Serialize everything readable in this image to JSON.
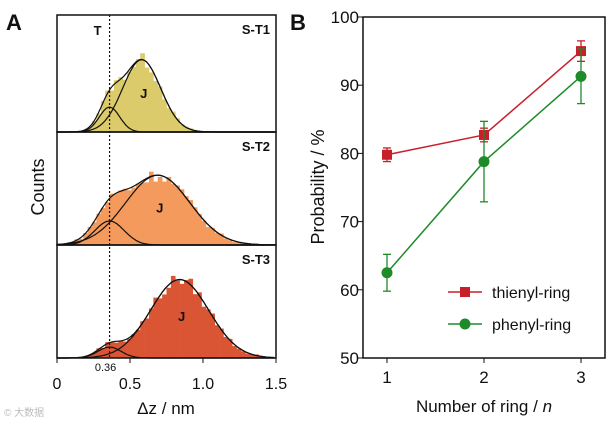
{
  "chart_data": [
    {
      "type": "histogram",
      "panel_label": "A",
      "xlabel": "Δz / nm",
      "ylabel": "Counts",
      "xlim": [
        0,
        1.5
      ],
      "xticks": [
        "0",
        "0.5",
        "1.0",
        "1.5"
      ],
      "xtick_values": [
        0,
        0.5,
        1.0,
        1.5
      ],
      "reference_line": {
        "x": 0.36,
        "label": "0.36",
        "style": "dotted"
      },
      "peak_labels": {
        "tunneling": "T",
        "junction": "J"
      },
      "series": [
        {
          "name": "S-T1",
          "color": "#dccb6a",
          "T": {
            "center": 0.36,
            "sigma": 0.07,
            "amp": 0.22
          },
          "J": {
            "center": 0.58,
            "sigma": 0.13,
            "amp": 0.64
          }
        },
        {
          "name": "S-T2",
          "color": "#f39a5c",
          "T": {
            "center": 0.36,
            "sigma": 0.1,
            "amp": 0.22
          },
          "J": {
            "center": 0.69,
            "sigma": 0.22,
            "amp": 0.64
          }
        },
        {
          "name": "S-T3",
          "color": "#d95533",
          "T": {
            "center": 0.36,
            "sigma": 0.08,
            "amp": 0.1
          },
          "J": {
            "center": 0.84,
            "sigma": 0.2,
            "amp": 0.72
          }
        }
      ]
    },
    {
      "type": "line",
      "panel_label": "B",
      "xlabel_main": "Number of ring / ",
      "xlabel_var": "n",
      "ylabel": "Probability / %",
      "x": [
        1,
        2,
        3
      ],
      "xticks": [
        "1",
        "2",
        "3"
      ],
      "ylim": [
        50,
        100
      ],
      "yticks": [
        "50",
        "60",
        "70",
        "80",
        "90",
        "100"
      ],
      "ytick_values": [
        50,
        60,
        70,
        80,
        90,
        100
      ],
      "legend": "bottom-right",
      "series": [
        {
          "name": "thienyl-ring",
          "color": "#c8202a",
          "marker": "square",
          "values": [
            79.8,
            82.7,
            95.0
          ],
          "errors": [
            1.0,
            1.0,
            1.5
          ]
        },
        {
          "name": "phenyl-ring",
          "color": "#1e8a2a",
          "marker": "circle",
          "values": [
            62.5,
            78.8,
            91.3
          ],
          "errors": [
            2.7,
            5.9,
            4.0
          ]
        }
      ]
    }
  ]
}
